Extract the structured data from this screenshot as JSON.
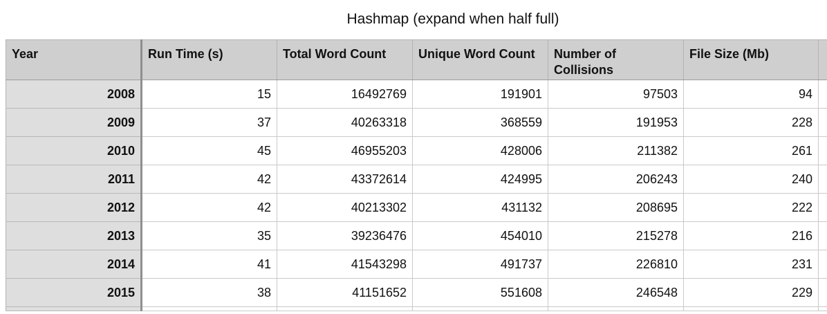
{
  "title": "Hashmap (expand when half full)",
  "columns": [
    "Year",
    "Run Time (s)",
    "Total Word Count",
    "Unique Word Count",
    "Number of Collisions",
    "File Size (Mb)"
  ],
  "rows": [
    [
      "2008",
      "15",
      "16492769",
      "191901",
      "97503",
      "94"
    ],
    [
      "2009",
      "37",
      "40263318",
      "368559",
      "191953",
      "228"
    ],
    [
      "2010",
      "45",
      "46955203",
      "428006",
      "211382",
      "261"
    ],
    [
      "2011",
      "42",
      "43372614",
      "424995",
      "206243",
      "240"
    ],
    [
      "2012",
      "42",
      "40213302",
      "431132",
      "208695",
      "222"
    ],
    [
      "2013",
      "35",
      "39236476",
      "454010",
      "215278",
      "216"
    ],
    [
      "2014",
      "41",
      "41543298",
      "491737",
      "226810",
      "231"
    ],
    [
      "2015",
      "38",
      "41151652",
      "551608",
      "246548",
      "229"
    ]
  ]
}
